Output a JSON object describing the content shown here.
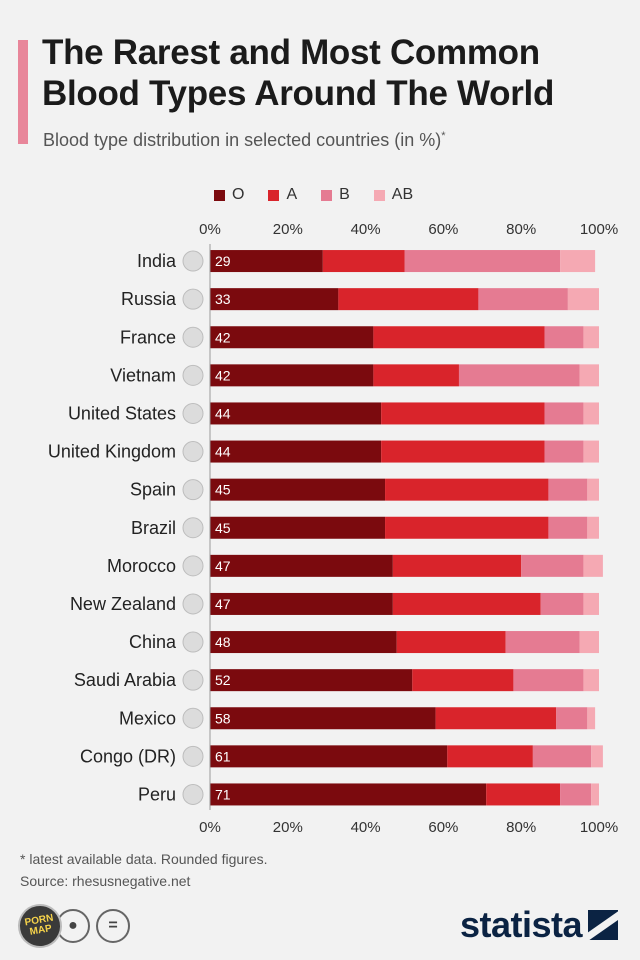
{
  "title": "The Rarest and Most Common Blood Types Around The World",
  "subtitle": "Blood type distribution in selected countries (in %)",
  "subtitle_mark": "*",
  "footnote": "* latest available data. Rounded figures.",
  "source": "Source: rhesusnegative.net",
  "brand": "statista",
  "badge_text": "PORN MAP",
  "colors": {
    "O": "#7b0a0e",
    "A": "#d9242b",
    "B": "#e57b92",
    "AB": "#f5a9b3",
    "accent": "#e8869a",
    "brand": "#0b2343"
  },
  "chart_data": {
    "type": "bar",
    "orientation": "horizontal",
    "stacked": true,
    "xlim": [
      0,
      100
    ],
    "x_ticks": [
      "0%",
      "20%",
      "40%",
      "60%",
      "80%",
      "100%"
    ],
    "legend_position": "top",
    "categories": [
      "India",
      "Russia",
      "France",
      "Vietnam",
      "United States",
      "United Kingdom",
      "Spain",
      "Brazil",
      "Morocco",
      "New Zealand",
      "China",
      "Saudi Arabia",
      "Mexico",
      "Congo (DR)",
      "Peru"
    ],
    "series": [
      {
        "name": "O",
        "values": [
          29,
          33,
          42,
          42,
          44,
          44,
          45,
          45,
          47,
          47,
          48,
          52,
          58,
          61,
          71
        ]
      },
      {
        "name": "A",
        "values": [
          21,
          36,
          44,
          22,
          42,
          42,
          42,
          42,
          33,
          38,
          28,
          26,
          31,
          22,
          19
        ]
      },
      {
        "name": "B",
        "values": [
          40,
          23,
          10,
          31,
          10,
          10,
          10,
          10,
          16,
          11,
          19,
          18,
          8,
          15,
          8
        ]
      },
      {
        "name": "AB",
        "values": [
          9,
          8,
          4,
          5,
          4,
          4,
          3,
          3,
          5,
          4,
          5,
          4,
          2,
          3,
          2
        ]
      }
    ],
    "data_labels_series": "O"
  }
}
